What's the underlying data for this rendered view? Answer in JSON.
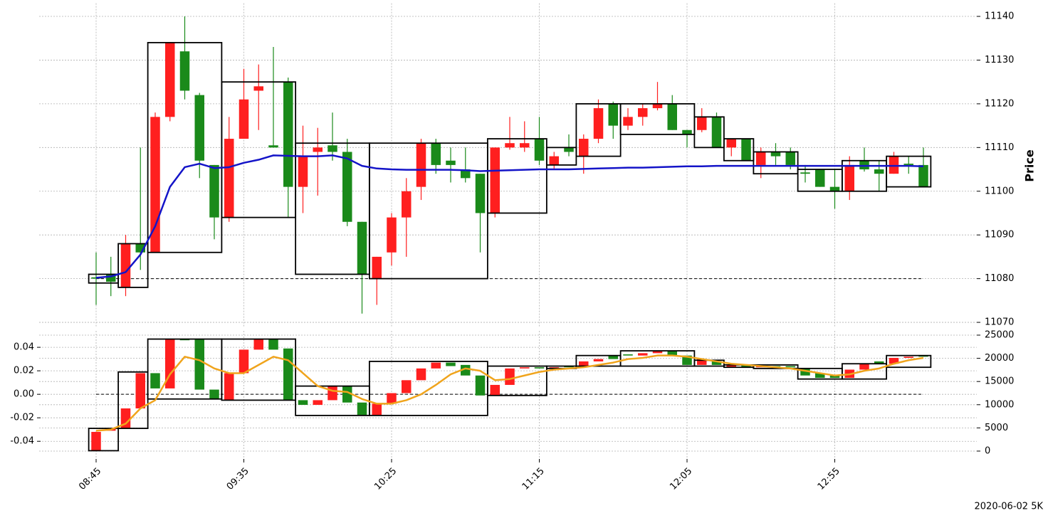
{
  "chart_data": {
    "type": "candlestick",
    "categories": [
      "08:45",
      null,
      null,
      null,
      null,
      null,
      null,
      null,
      null,
      null,
      "09:35",
      null,
      null,
      null,
      null,
      null,
      null,
      null,
      null,
      null,
      "10:25",
      null,
      null,
      null,
      null,
      null,
      null,
      null,
      null,
      null,
      "11:15",
      null,
      null,
      null,
      null,
      null,
      null,
      null,
      null,
      null,
      "12:05",
      null,
      null,
      null,
      null,
      null,
      null,
      null,
      null,
      null,
      "12:55",
      null,
      null,
      null,
      null,
      null,
      null
    ],
    "up_color": "#1a8a1a",
    "down_color": "#ff1f1f",
    "grid": true,
    "annotation": "2020-06-02 5K",
    "panels": [
      {
        "ylabel": "Price",
        "y_axis_side": "right",
        "ylim": [
          11069,
          11143
        ],
        "yticks": [
          11070,
          11080,
          11090,
          11100,
          11110,
          11120,
          11130,
          11140
        ],
        "reference_line": 11080,
        "open": [
          11080,
          11079.3,
          11088,
          11086,
          11117,
          11134,
          11123,
          11107,
          11094,
          11112,
          11121,
          11124,
          11110,
          11101,
          11108,
          11110,
          11109,
          11093,
          11081,
          11085,
          11094,
          11100,
          11111,
          11106,
          11106,
          11103,
          11095,
          11110,
          11111,
          11111,
          11107,
          11108,
          11109,
          11112,
          11119,
          11115,
          11117,
          11119,
          11120,
          11114,
          11113,
          11117,
          11110,
          11112,
          11107,
          11109,
          11108,
          11106,
          11104,
          11101,
          11100,
          11106,
          11105,
          11104,
          11108,
          11106,
          11101
        ],
        "high": [
          11086,
          11085,
          11090,
          11110,
          11118,
          11134,
          11140,
          11122.5,
          11106,
          11117,
          11128,
          11129,
          11133,
          11126,
          11115,
          11114.5,
          11118,
          11112,
          11093,
          11085,
          11095,
          11103,
          11112,
          11112,
          11110,
          11110,
          11104,
          11110,
          11117,
          11116,
          11117,
          11109,
          11113,
          11113,
          11121,
          11120.5,
          11119,
          11120,
          11125,
          11122,
          11114,
          11119,
          11118,
          11112,
          11112,
          11110,
          11111,
          11110,
          11106,
          11105,
          11105,
          11108,
          11110,
          11107,
          11109,
          11108,
          11110
        ],
        "low": [
          11074,
          11076,
          11076,
          11082,
          11086,
          11116,
          11121,
          11103,
          11089,
          11093,
          11112,
          11114,
          11110,
          11094,
          11095,
          11099,
          11107,
          11092,
          11072,
          11074,
          11083,
          11085,
          11098,
          11104,
          11102,
          11102,
          11086,
          11094,
          11109.5,
          11109,
          11106,
          11105,
          11108,
          11104,
          11111,
          11112,
          11114,
          11115,
          11118.5,
          11114,
          11110,
          11113.5,
          11110,
          11108,
          11107,
          11103,
          11106,
          11105,
          11102,
          11101,
          11096,
          11098,
          11104.5,
          11100,
          11104,
          11104,
          11101
        ],
        "close": [
          11080.3,
          11081,
          11078,
          11088,
          11086,
          11117,
          11132,
          11122,
          11106,
          11094,
          11112,
          11123,
          11110.5,
          11125,
          11101,
          11109,
          11110.5,
          11109,
          11093,
          11080,
          11086,
          11094,
          11101,
          11111,
          11107,
          11105,
          11104,
          11095,
          11110,
          11110,
          11112,
          11106,
          11110,
          11108,
          11112,
          11120,
          11115,
          11117,
          11119,
          11120,
          11114,
          11114,
          11117,
          11110,
          11112,
          11106,
          11109,
          11109,
          11104.3,
          11105,
          11101,
          11100,
          11107,
          11105,
          11104,
          11106.3,
          11106
        ],
        "line": {
          "color": "#1414c8",
          "values": [
            11080.2,
            11080.5,
            11081.5,
            11085.5,
            11092,
            11101,
            11105.5,
            11106.3,
            11105.3,
            11105.5,
            11106.5,
            11107.2,
            11108.2,
            11108.1,
            11108,
            11108,
            11108.2,
            11107.5,
            11105.8,
            11105.2,
            11105,
            11104.9,
            11104.9,
            11104.9,
            11104.9,
            11104.8,
            11104.6,
            11104.7,
            11104.8,
            11104.9,
            11105,
            11105,
            11105,
            11105.1,
            11105.2,
            11105.3,
            11105.4,
            11105.4,
            11105.5,
            11105.6,
            11105.7,
            11105.7,
            11105.8,
            11105.8,
            11105.8,
            11105.8,
            11105.8,
            11105.8,
            11105.8,
            11105.8,
            11105.8,
            11105.8,
            11105.8,
            11105.8,
            11105.8,
            11105.8,
            11105.7
          ]
        },
        "boxes": [
          {
            "start": 0,
            "end": 1,
            "high": 11081,
            "low": 11079
          },
          {
            "start": 2,
            "end": 3,
            "high": 11088,
            "low": 11078
          },
          {
            "start": 4,
            "end": 8,
            "high": 11134,
            "low": 11086
          },
          {
            "start": 9,
            "end": 13,
            "high": 11125,
            "low": 11094
          },
          {
            "start": 14,
            "end": 18,
            "high": 11111,
            "low": 11081
          },
          {
            "start": 19,
            "end": 26,
            "high": 11111,
            "low": 11080
          },
          {
            "start": 27,
            "end": 30,
            "high": 11112,
            "low": 11095
          },
          {
            "start": 31,
            "end": 32,
            "high": 11110,
            "low": 11106
          },
          {
            "start": 33,
            "end": 35,
            "high": 11120,
            "low": 11108
          },
          {
            "start": 36,
            "end": 40,
            "high": 11120,
            "low": 11113
          },
          {
            "start": 41,
            "end": 42,
            "high": 11117,
            "low": 11110
          },
          {
            "start": 43,
            "end": 44,
            "high": 11112,
            "low": 11107
          },
          {
            "start": 45,
            "end": 47,
            "high": 11109,
            "low": 11104
          },
          {
            "start": 48,
            "end": 50,
            "high": 11105,
            "low": 11100
          },
          {
            "start": 51,
            "end": 53,
            "high": 11107,
            "low": 11100
          },
          {
            "start": 54,
            "end": 56,
            "high": 11108,
            "low": 11101
          }
        ]
      },
      {
        "y_axis_side": "left",
        "ylim": [
          -0.055,
          0.054
        ],
        "yticks": [
          -0.04,
          -0.02,
          {
            "value": 0,
            "label": "0.00"
          },
          0.02,
          0.04
        ],
        "y2lim": [
          -1690,
          25920
        ],
        "y2ticks": [
          0,
          5000,
          10000,
          15000,
          20000,
          25000
        ],
        "reference_line": 0,
        "open": [
          -0.032,
          -0.029,
          -0.012,
          0.018,
          0.005,
          0.047,
          0.046,
          0.004,
          -0.004,
          0.018,
          0.038,
          0.047,
          0.038,
          -0.005,
          -0.009,
          -0.005,
          0.007,
          -0.007,
          -0.018,
          -0.008,
          0.001,
          0.012,
          0.022,
          0.027,
          0.024,
          0.016,
          -0.001,
          0.008,
          0.022,
          0.023,
          0.022,
          0.023,
          0.023,
          0.028,
          0.03,
          0.03,
          0.033,
          0.035,
          0.037,
          0.033,
          0.025,
          0.03,
          0.025,
          0.025,
          0.023,
          0.024,
          0.023,
          0.023,
          0.016,
          0.014,
          0.014,
          0.021,
          0.026,
          0.026,
          0.031,
          0.032,
          0.032
        ],
        "close": [
          -0.048,
          -0.031,
          -0.029,
          -0.012,
          0.018,
          0.005,
          0.047,
          0.047,
          0.004,
          -0.005,
          0.018,
          0.038,
          0.047,
          0.039,
          -0.005,
          -0.009,
          -0.005,
          0.007,
          -0.007,
          -0.018,
          -0.008,
          0.001,
          0.012,
          0.022,
          0.027,
          0.025,
          0.016,
          -0.001,
          0.008,
          0.022,
          0.023,
          0.022,
          0.024,
          0.024,
          0.028,
          0.033,
          0.034,
          0.033,
          0.035,
          0.037,
          0.033,
          0.025,
          0.028,
          0.023,
          0.025,
          0.023,
          0.024,
          0.024,
          0.022,
          0.018,
          0.016,
          0.014,
          0.021,
          0.028,
          0.026,
          0.031,
          0.033
        ],
        "line": {
          "color": "#f0a41c",
          "values": [
            -0.031,
            -0.03,
            -0.025,
            -0.012,
            -0.005,
            0.017,
            0.032,
            0.029,
            0.022,
            0.018,
            0.018,
            0.025,
            0.032,
            0.029,
            0.018,
            0.007,
            0.003,
            0.002,
            -0.004,
            -0.008,
            -0.008,
            -0.005,
            0,
            0.008,
            0.017,
            0.022,
            0.02,
            0.012,
            0.013,
            0.016,
            0.019,
            0.021,
            0.022,
            0.023,
            0.025,
            0.027,
            0.03,
            0.031,
            0.033,
            0.033,
            0.032,
            0.03,
            0.028,
            0.026,
            0.025,
            0.024,
            0.023,
            0.022,
            0.02,
            0.018,
            0.016,
            0.017,
            0.02,
            0.022,
            0.026,
            0.029,
            0.031
          ]
        },
        "boxes": [
          {
            "start": 0,
            "end": 1,
            "high": -0.029,
            "low": -0.048
          },
          {
            "start": 2,
            "end": 3,
            "high": 0.019,
            "low": -0.029
          },
          {
            "start": 4,
            "end": 8,
            "high": 0.047,
            "low": -0.004
          },
          {
            "start": 9,
            "end": 13,
            "high": 0.047,
            "low": -0.005
          },
          {
            "start": 14,
            "end": 18,
            "high": 0.007,
            "low": -0.018
          },
          {
            "start": 19,
            "end": 26,
            "high": 0.028,
            "low": -0.018
          },
          {
            "start": 27,
            "end": 30,
            "high": 0.024,
            "low": -0.001
          },
          {
            "start": 31,
            "end": 32,
            "high": 0.024,
            "low": 0.022
          },
          {
            "start": 33,
            "end": 35,
            "high": 0.033,
            "low": 0.024
          },
          {
            "start": 36,
            "end": 40,
            "high": 0.037,
            "low": 0.024
          },
          {
            "start": 41,
            "end": 42,
            "high": 0.029,
            "low": 0.024
          },
          {
            "start": 43,
            "end": 44,
            "high": 0.025,
            "low": 0.023
          },
          {
            "start": 45,
            "end": 47,
            "high": 0.025,
            "low": 0.022
          },
          {
            "start": 48,
            "end": 50,
            "high": 0.022,
            "low": 0.013
          },
          {
            "start": 51,
            "end": 53,
            "high": 0.026,
            "low": 0.013
          },
          {
            "start": 54,
            "end": 56,
            "high": 0.033,
            "low": 0.023
          }
        ]
      }
    ]
  }
}
